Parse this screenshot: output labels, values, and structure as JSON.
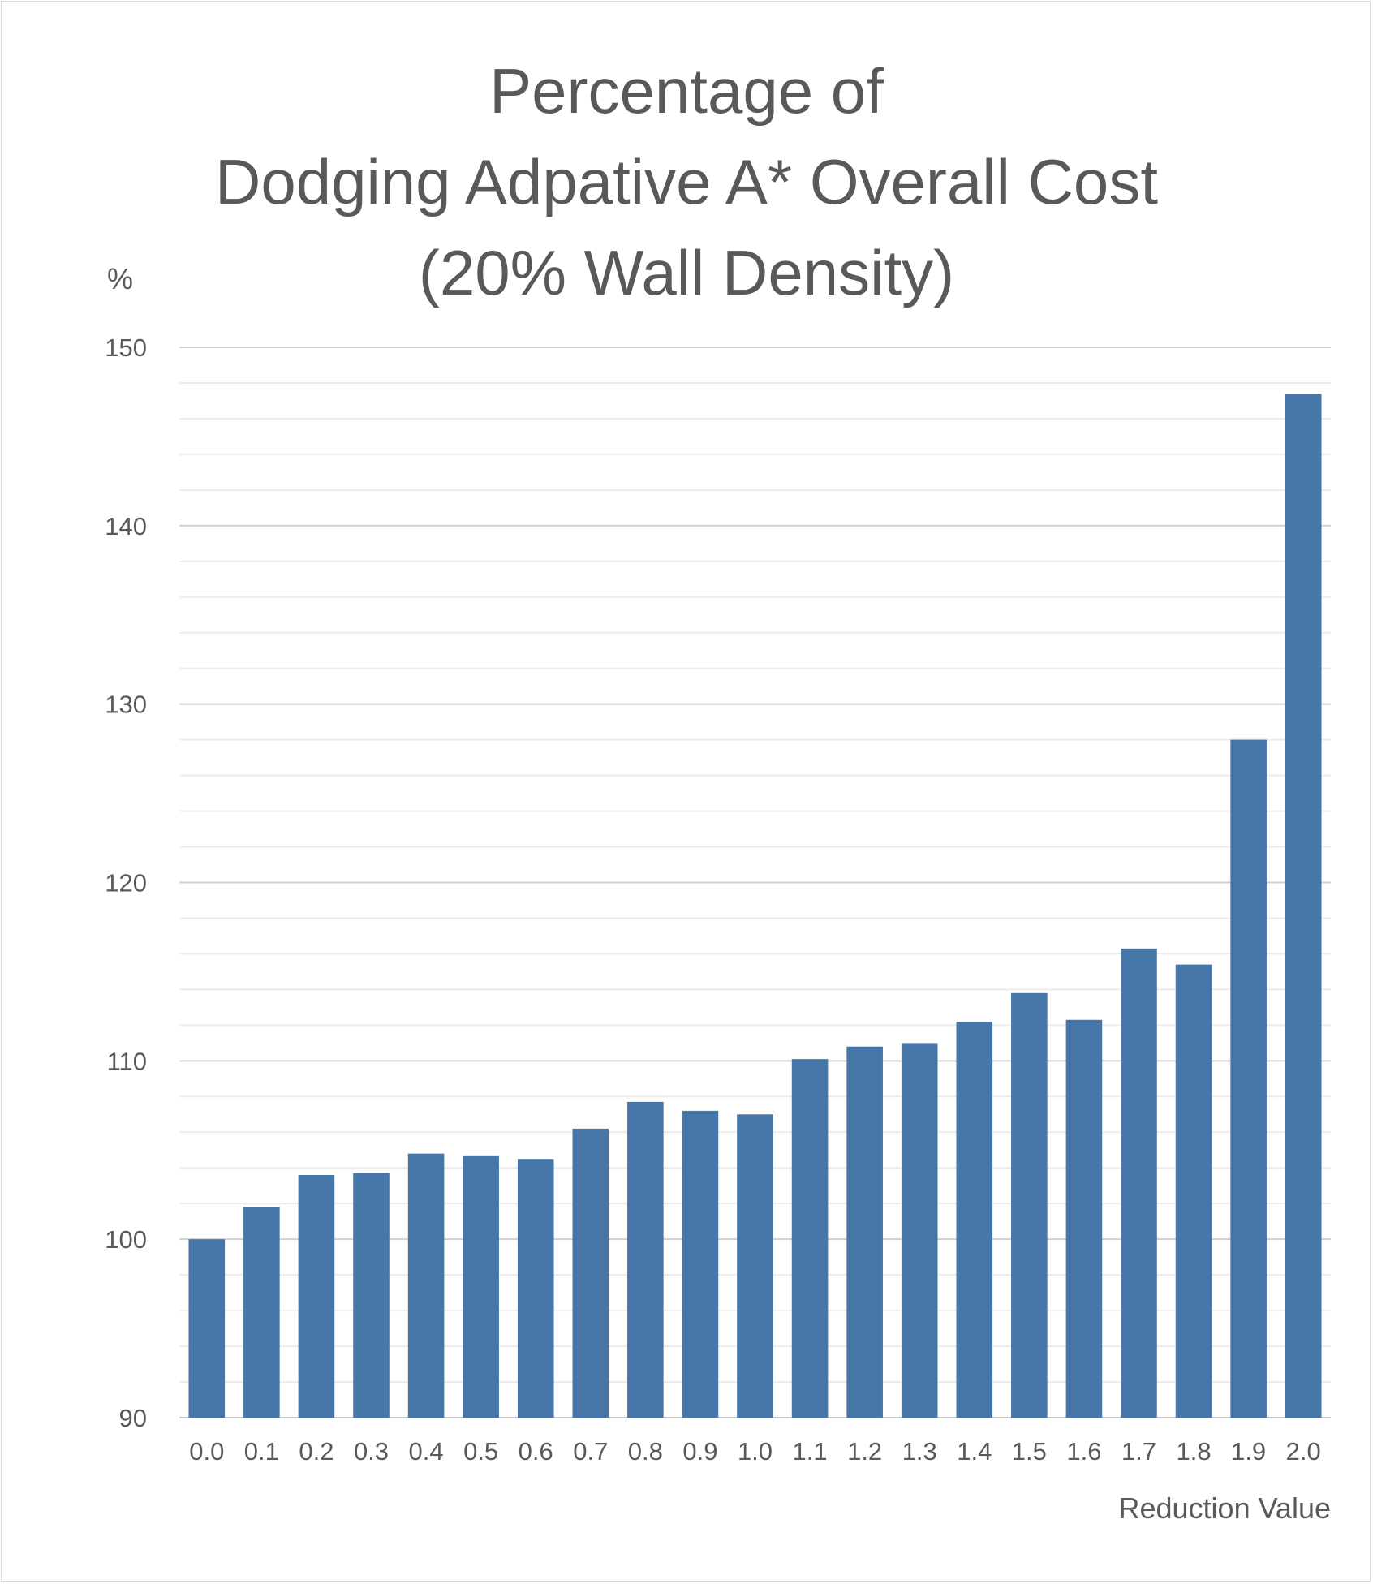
{
  "chart_data": {
    "type": "bar",
    "title_lines": [
      "Percentage of",
      "Dodging Adpative A* Overall Cost",
      "(20% Wall Density)"
    ],
    "xlabel": "Reduction Value",
    "ylabel": "%",
    "ylim": [
      90,
      150
    ],
    "y_ticks": [
      "90",
      "100",
      "110",
      "120",
      "130",
      "140",
      "150"
    ],
    "categories": [
      "0.0",
      "0.1",
      "0.2",
      "0.3",
      "0.4",
      "0.5",
      "0.6",
      "0.7",
      "0.8",
      "0.9",
      "1.0",
      "1.1",
      "1.2",
      "1.3",
      "1.4",
      "1.5",
      "1.6",
      "1.7",
      "1.8",
      "1.9",
      "2.0"
    ],
    "values": [
      100.0,
      101.8,
      103.6,
      103.7,
      104.8,
      104.7,
      104.5,
      106.2,
      107.7,
      107.2,
      107.0,
      110.1,
      110.8,
      111.0,
      112.2,
      113.8,
      112.3,
      116.3,
      115.4,
      128.0,
      147.4
    ],
    "bar_color": "#4677a8",
    "grid": true,
    "minor_grid": true,
    "legend": "none"
  }
}
